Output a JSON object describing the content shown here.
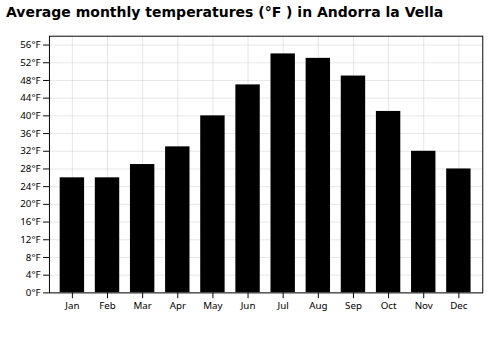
{
  "chart_data": {
    "type": "bar",
    "title": "Average monthly temperatures (°F ) in Andorra la Vella",
    "categories": [
      "Jan",
      "Feb",
      "Mar",
      "Apr",
      "May",
      "Jun",
      "Jul",
      "Aug",
      "Sep",
      "Oct",
      "Nov",
      "Dec"
    ],
    "values": [
      26.0,
      26.0,
      29.0,
      33.0,
      40.0,
      47.0,
      54.0,
      53.0,
      49.0,
      41.0,
      32.0,
      28.0
    ],
    "ylim": [
      0,
      58
    ],
    "yticks": [
      {
        "value": 0,
        "label": "0°F"
      },
      {
        "value": 4,
        "label": "4°F"
      },
      {
        "value": 8,
        "label": "8°F"
      },
      {
        "value": 12,
        "label": "12°F"
      },
      {
        "value": 16,
        "label": "16°F"
      },
      {
        "value": 20,
        "label": "20°F"
      },
      {
        "value": 24,
        "label": "24°F"
      },
      {
        "value": 28,
        "label": "28°F"
      },
      {
        "value": 32,
        "label": "32°F"
      },
      {
        "value": 36,
        "label": "36°F"
      },
      {
        "value": 40,
        "label": "40°F"
      },
      {
        "value": 44,
        "label": "44°F"
      },
      {
        "value": 48,
        "label": "48°F"
      },
      {
        "value": 52,
        "label": "52°F"
      },
      {
        "value": 56,
        "label": "56°F"
      }
    ],
    "grid": true
  }
}
